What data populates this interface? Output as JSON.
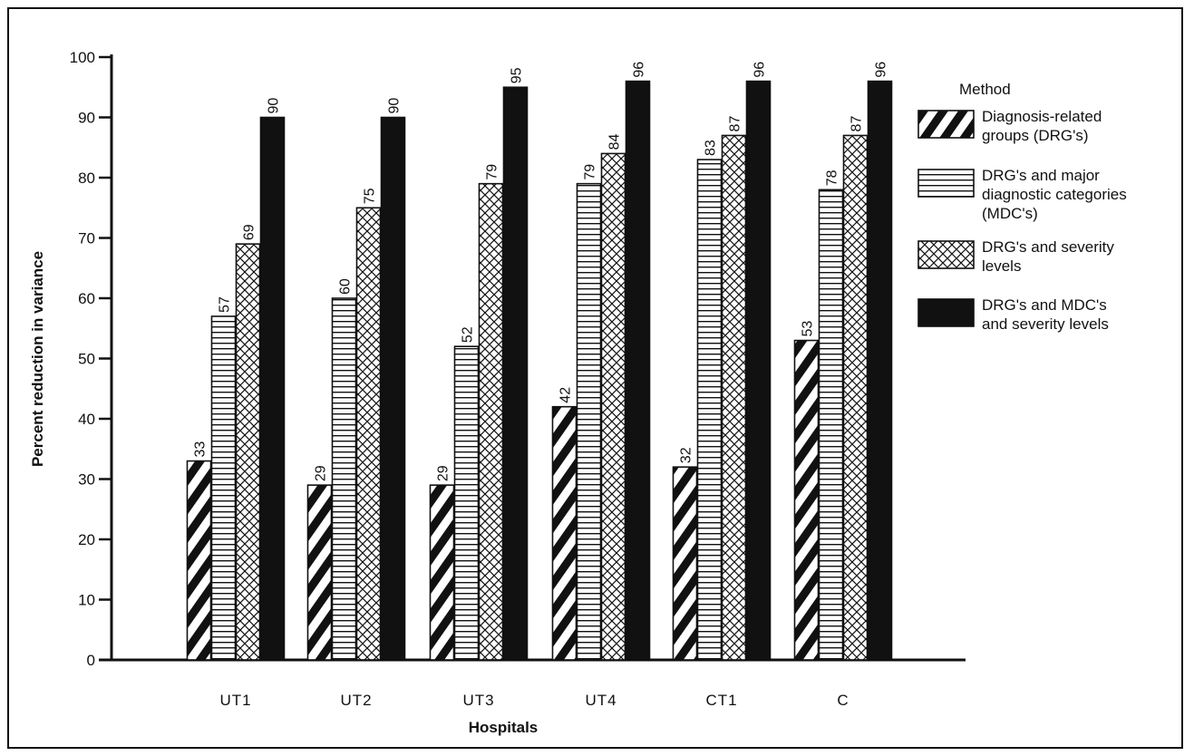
{
  "chart_data": {
    "type": "bar",
    "xlabel": "Hospitals",
    "ylabel": "Percent reduction in variance",
    "ylim": [
      0,
      100
    ],
    "yticks": [
      0,
      10,
      20,
      30,
      40,
      50,
      60,
      70,
      80,
      90,
      100
    ],
    "categories": [
      "UT1",
      "UT2",
      "UT3",
      "UT4",
      "CT1",
      "C"
    ],
    "legend_title": "Method",
    "legend_position": "right",
    "grid": false,
    "series": [
      {
        "name": "Diagnosis-related groups (DRG's)",
        "legend_lines": [
          "Diagnosis-related",
          "groups (DRG's)"
        ],
        "pattern": "diagonal-stripes",
        "values": [
          33,
          29,
          29,
          42,
          32,
          53
        ]
      },
      {
        "name": "DRG's and major diagnostic categories (MDC's)",
        "legend_lines": [
          "DRG's and major",
          "diagnostic categories",
          "(MDC's)"
        ],
        "pattern": "horizontal-lines",
        "values": [
          57,
          60,
          52,
          79,
          83,
          78
        ]
      },
      {
        "name": "DRG's and severity levels",
        "legend_lines": [
          "DRG's and severity",
          "levels"
        ],
        "pattern": "crosshatch",
        "values": [
          69,
          75,
          79,
          84,
          87,
          87
        ]
      },
      {
        "name": "DRG's and MDC's and severity levels",
        "legend_lines": [
          "DRG's and MDC's",
          "and severity levels"
        ],
        "pattern": "solid-black",
        "values": [
          90,
          90,
          95,
          96,
          96,
          96
        ]
      }
    ]
  },
  "colors": {
    "ink": "#111111",
    "paper": "#ffffff"
  }
}
